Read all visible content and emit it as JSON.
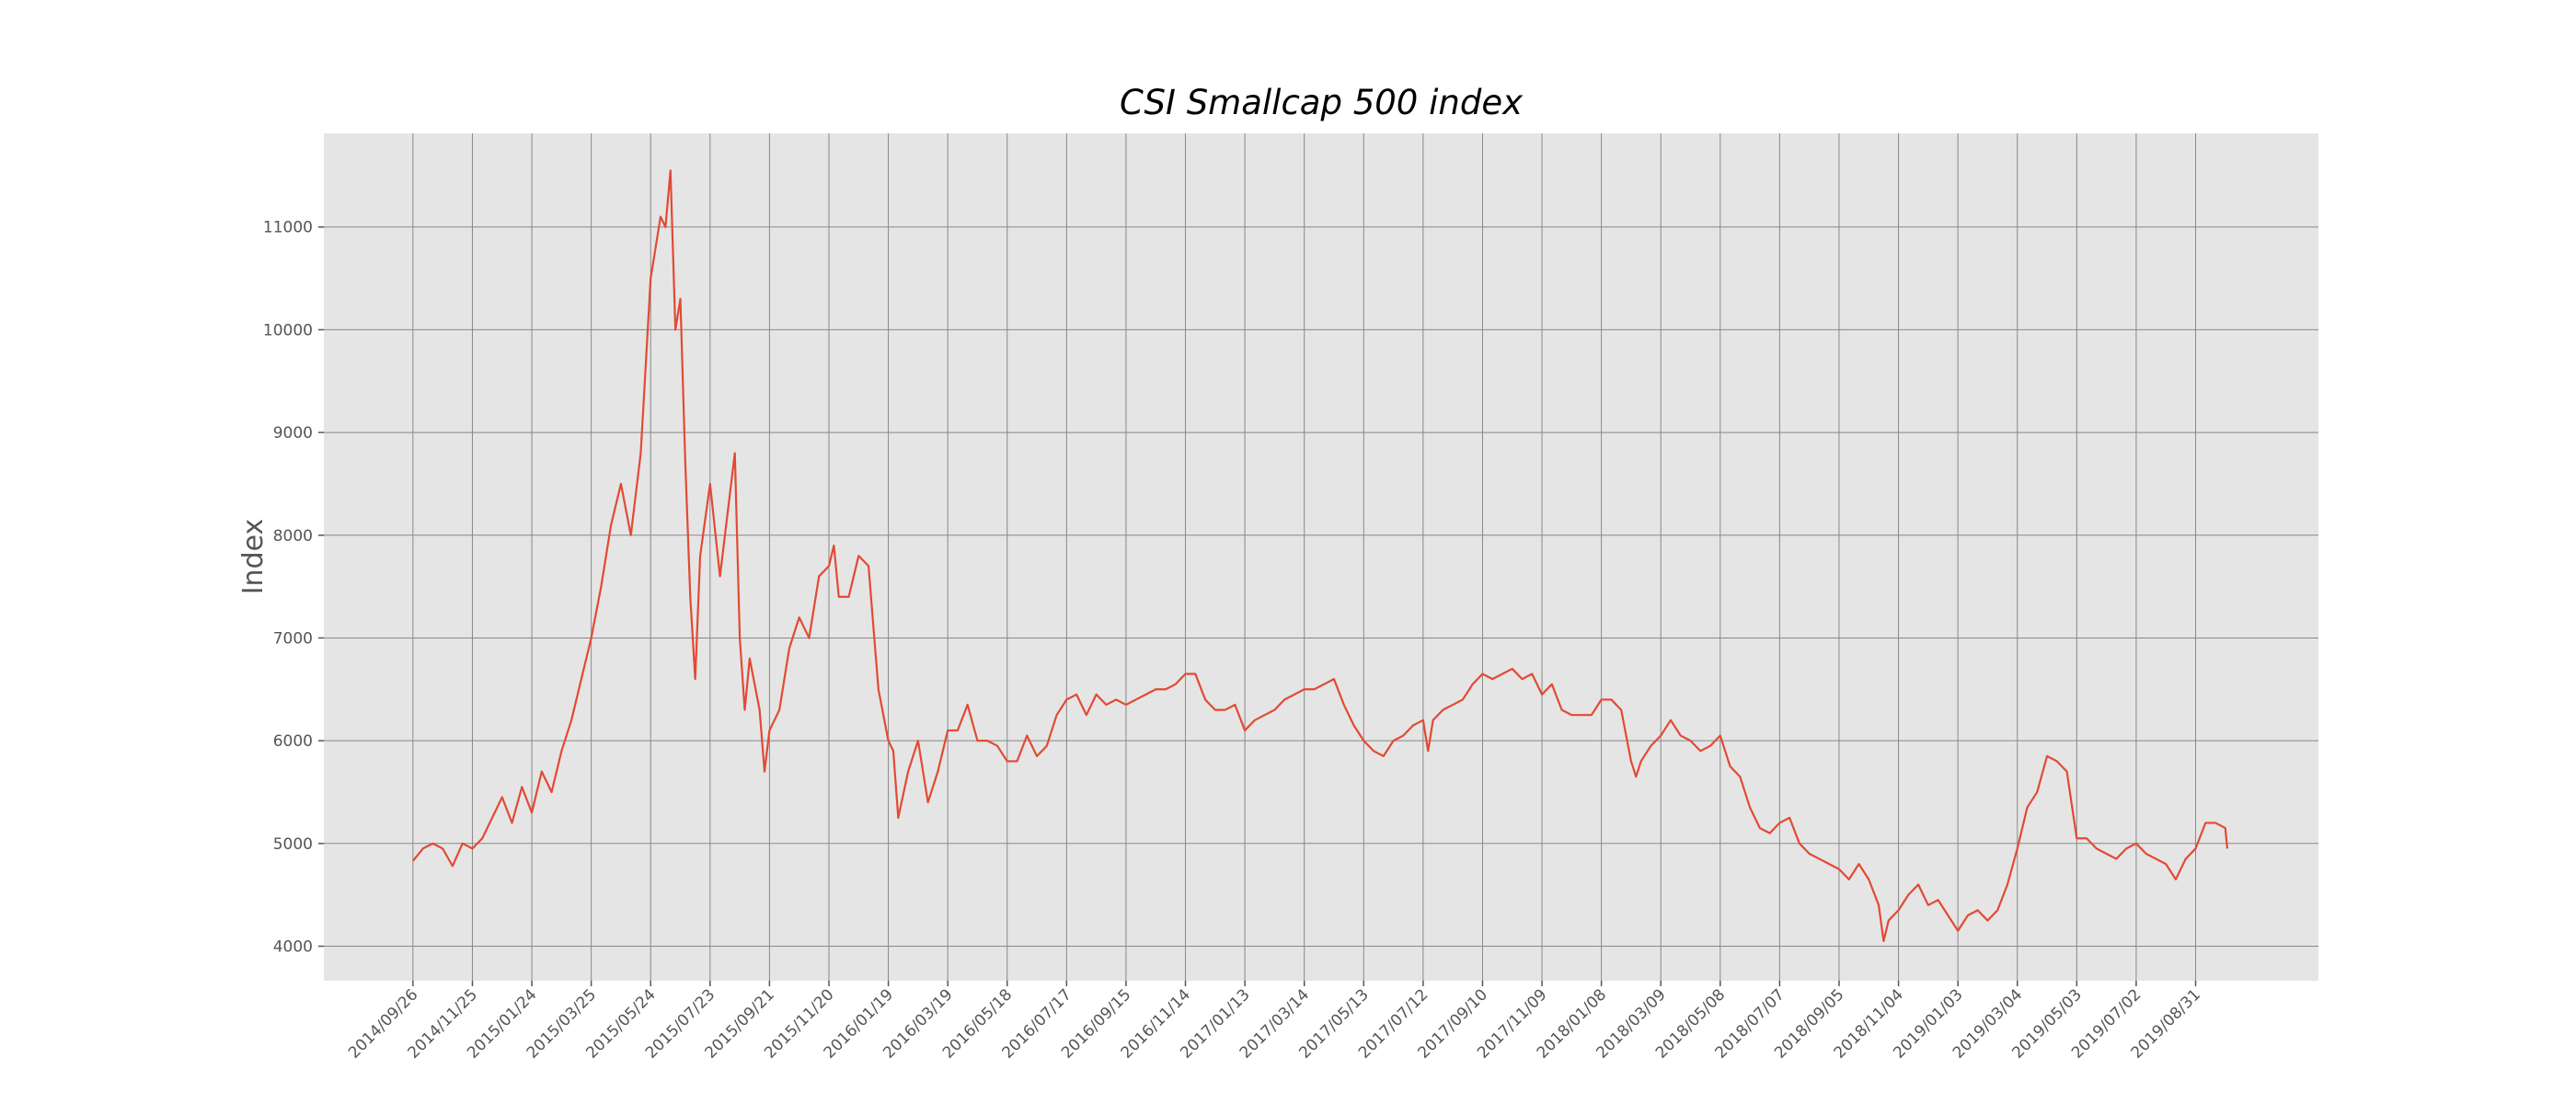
{
  "chart_data": {
    "type": "line",
    "title": "CSI Smallcap 500 index",
    "y_label": "Index",
    "x": [
      "2014/09/26",
      "2014/10/06",
      "2014/10/16",
      "2014/10/26",
      "2014/11/05",
      "2014/11/15",
      "2014/11/25",
      "2014/12/05",
      "2014/12/15",
      "2014/12/25",
      "2015/01/04",
      "2015/01/14",
      "2015/01/24",
      "2015/02/03",
      "2015/02/13",
      "2015/02/23",
      "2015/03/05",
      "2015/03/15",
      "2015/03/25",
      "2015/04/04",
      "2015/04/14",
      "2015/04/24",
      "2015/05/04",
      "2015/05/14",
      "2015/05/24",
      "2015/06/03",
      "2015/06/08",
      "2015/06/13",
      "2015/06/18",
      "2015/06/23",
      "2015/06/28",
      "2015/07/03",
      "2015/07/08",
      "2015/07/13",
      "2015/07/23",
      "2015/08/02",
      "2015/08/12",
      "2015/08/17",
      "2015/08/22",
      "2015/08/27",
      "2015/09/01",
      "2015/09/11",
      "2015/09/16",
      "2015/09/21",
      "2015/10/01",
      "2015/10/11",
      "2015/10/21",
      "2015/10/31",
      "2015/11/10",
      "2015/11/20",
      "2015/11/25",
      "2015/11/30",
      "2015/12/10",
      "2015/12/20",
      "2015/12/30",
      "2016/01/09",
      "2016/01/19",
      "2016/01/24",
      "2016/01/29",
      "2016/02/08",
      "2016/02/18",
      "2016/02/28",
      "2016/03/09",
      "2016/03/19",
      "2016/03/29",
      "2016/04/08",
      "2016/04/18",
      "2016/04/28",
      "2016/05/08",
      "2016/05/18",
      "2016/05/28",
      "2016/06/07",
      "2016/06/17",
      "2016/06/27",
      "2016/07/07",
      "2016/07/17",
      "2016/07/27",
      "2016/08/06",
      "2016/08/16",
      "2016/08/26",
      "2016/09/05",
      "2016/09/15",
      "2016/09/25",
      "2016/10/05",
      "2016/10/15",
      "2016/10/25",
      "2016/11/04",
      "2016/11/14",
      "2016/11/24",
      "2016/12/04",
      "2016/12/14",
      "2016/12/24",
      "2017/01/03",
      "2017/01/13",
      "2017/01/23",
      "2017/02/02",
      "2017/02/12",
      "2017/02/22",
      "2017/03/04",
      "2017/03/14",
      "2017/03/24",
      "2017/04/03",
      "2017/04/13",
      "2017/04/23",
      "2017/05/03",
      "2017/05/13",
      "2017/05/23",
      "2017/06/02",
      "2017/06/12",
      "2017/06/22",
      "2017/07/02",
      "2017/07/12",
      "2017/07/17",
      "2017/07/22",
      "2017/08/01",
      "2017/08/11",
      "2017/08/21",
      "2017/08/31",
      "2017/09/10",
      "2017/09/20",
      "2017/09/30",
      "2017/10/10",
      "2017/10/20",
      "2017/10/30",
      "2017/11/09",
      "2017/11/19",
      "2017/11/29",
      "2017/12/09",
      "2017/12/19",
      "2017/12/29",
      "2018/01/08",
      "2018/01/18",
      "2018/01/28",
      "2018/02/07",
      "2018/02/12",
      "2018/02/17",
      "2018/02/27",
      "2018/03/09",
      "2018/03/19",
      "2018/03/29",
      "2018/04/08",
      "2018/04/18",
      "2018/04/28",
      "2018/05/08",
      "2018/05/18",
      "2018/05/28",
      "2018/06/07",
      "2018/06/17",
      "2018/06/27",
      "2018/07/07",
      "2018/07/17",
      "2018/07/27",
      "2018/08/06",
      "2018/08/16",
      "2018/08/26",
      "2018/09/05",
      "2018/09/15",
      "2018/09/25",
      "2018/10/05",
      "2018/10/15",
      "2018/10/20",
      "2018/10/25",
      "2018/11/04",
      "2018/11/14",
      "2018/11/24",
      "2018/12/04",
      "2018/12/14",
      "2018/12/24",
      "2019/01/03",
      "2019/01/13",
      "2019/01/23",
      "2019/02/02",
      "2019/02/12",
      "2019/02/22",
      "2019/03/04",
      "2019/03/14",
      "2019/03/24",
      "2019/04/03",
      "2019/04/13",
      "2019/04/23",
      "2019/05/03",
      "2019/05/13",
      "2019/05/23",
      "2019/06/02",
      "2019/06/12",
      "2019/06/22",
      "2019/07/02",
      "2019/07/12",
      "2019/07/22",
      "2019/08/01",
      "2019/08/11",
      "2019/08/21",
      "2019/08/31",
      "2019/09/10",
      "2019/09/20",
      "2019/09/30",
      "2019/10/02"
    ],
    "series": [
      {
        "name": "CSI Smallcap 500",
        "color": "#e24a33",
        "values": [
          4830,
          4950,
          5000,
          4950,
          4780,
          5000,
          4950,
          5050,
          5250,
          5450,
          5200,
          5550,
          5300,
          5700,
          5500,
          5900,
          6200,
          6600,
          7000,
          7500,
          8100,
          8500,
          8000,
          8800,
          10500,
          11100,
          11000,
          11550,
          10000,
          10300,
          8700,
          7400,
          6600,
          7800,
          8500,
          7600,
          8400,
          8800,
          7000,
          6300,
          6800,
          6300,
          5700,
          6100,
          6300,
          6900,
          7200,
          7000,
          7600,
          7700,
          7900,
          7400,
          7400,
          7800,
          7700,
          6500,
          6000,
          5900,
          5250,
          5700,
          6000,
          5400,
          5700,
          6100,
          6100,
          6350,
          6000,
          6000,
          5950,
          5800,
          5800,
          6050,
          5850,
          5950,
          6250,
          6400,
          6450,
          6250,
          6450,
          6350,
          6400,
          6350,
          6400,
          6450,
          6500,
          6500,
          6550,
          6650,
          6650,
          6400,
          6300,
          6300,
          6350,
          6100,
          6200,
          6250,
          6300,
          6400,
          6450,
          6500,
          6500,
          6550,
          6600,
          6350,
          6150,
          6000,
          5900,
          5850,
          6000,
          6050,
          6150,
          6200,
          5900,
          6200,
          6300,
          6350,
          6400,
          6550,
          6650,
          6600,
          6650,
          6700,
          6600,
          6650,
          6450,
          6550,
          6300,
          6250,
          6250,
          6250,
          6400,
          6400,
          6300,
          5800,
          5650,
          5800,
          5950,
          6050,
          6200,
          6050,
          6000,
          5900,
          5950,
          6050,
          5750,
          5650,
          5350,
          5150,
          5100,
          5200,
          5250,
          5000,
          4900,
          4850,
          4800,
          4750,
          4650,
          4800,
          4650,
          4400,
          4050,
          4250,
          4350,
          4500,
          4600,
          4400,
          4450,
          4300,
          4150,
          4300,
          4350,
          4250,
          4350,
          4600,
          4950,
          5350,
          5500,
          5850,
          5800,
          5700,
          5050,
          5050,
          4950,
          4900,
          4850,
          4950,
          5000,
          4900,
          4850,
          4800,
          4650,
          4850,
          4950,
          5200,
          5200,
          5150,
          4950
        ]
      }
    ],
    "xlim": [
      "2014/06/28",
      "2020/01/02"
    ],
    "xticks": [
      "2014/09/26",
      "2014/11/25",
      "2015/01/24",
      "2015/03/25",
      "2015/05/24",
      "2015/07/23",
      "2015/09/21",
      "2015/11/20",
      "2016/01/19",
      "2016/03/19",
      "2016/05/18",
      "2016/07/17",
      "2016/09/15",
      "2016/11/14",
      "2017/01/13",
      "2017/03/14",
      "2017/05/13",
      "2017/07/12",
      "2017/09/10",
      "2017/11/09",
      "2018/01/08",
      "2018/03/09",
      "2018/05/08",
      "2018/07/07",
      "2018/09/05",
      "2018/11/04",
      "2019/01/03",
      "2019/03/04",
      "2019/05/03",
      "2019/07/02",
      "2019/08/31"
    ],
    "ylim": [
      3664,
      11911
    ],
    "yticks": [
      4000,
      5000,
      6000,
      7000,
      8000,
      9000,
      10000,
      11000
    ],
    "grid": true
  }
}
